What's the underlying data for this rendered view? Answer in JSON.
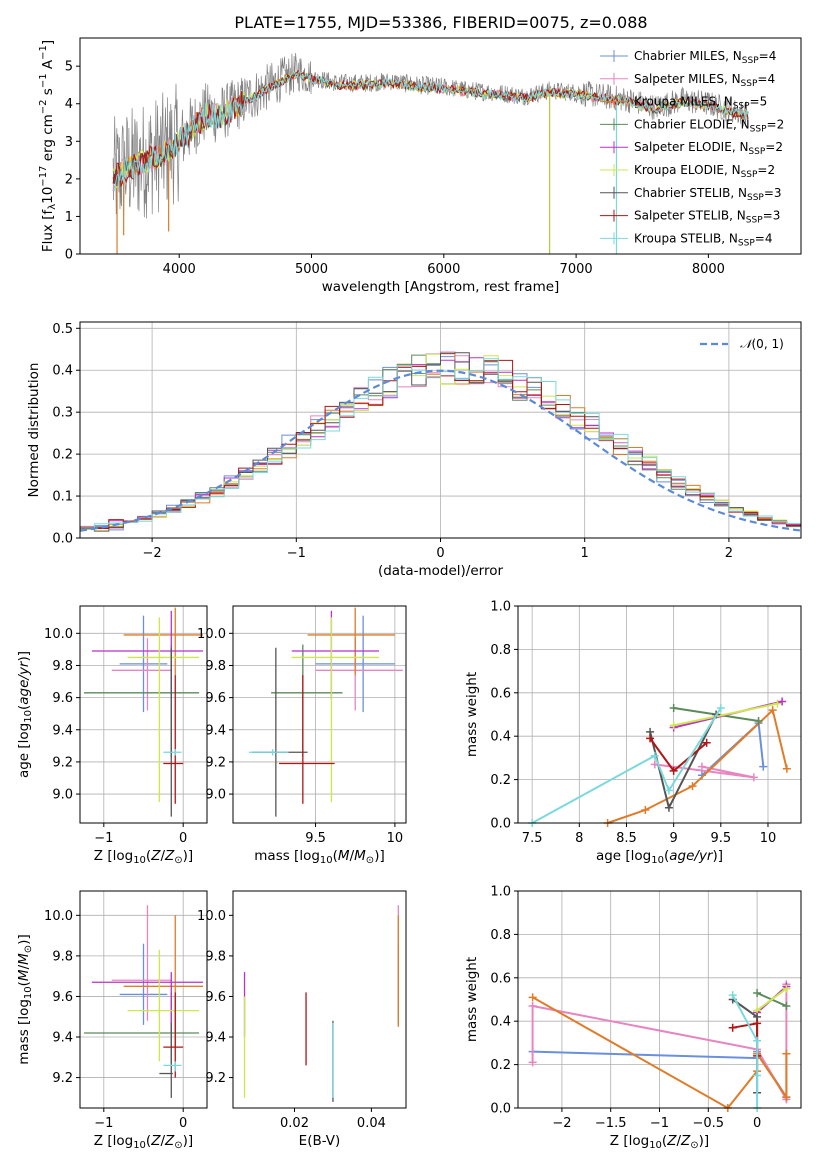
{
  "title": "PLATE=1755, MJD=53386, FIBERID=0075, z=0.088",
  "colors": {
    "chabrier_miles": "#6a8fdb",
    "salpeter_miles": "#e885c0",
    "kroupa_miles": "#e07b28",
    "chabrier_elodie": "#5b8a5b",
    "salpeter_elodie": "#b832c9",
    "kroupa_elodie": "#cde84d",
    "chabrier_stelib": "#555555",
    "salpeter_stelib": "#b01515",
    "kroupa_stelib": "#7ad9dd",
    "data": "#808080"
  },
  "models": [
    {
      "key": "chabrier_miles",
      "imf": "Chabrier",
      "lib": "MILES",
      "nssp": "4"
    },
    {
      "key": "salpeter_miles",
      "imf": "Salpeter",
      "lib": "MILES",
      "nssp": "4"
    },
    {
      "key": "kroupa_miles",
      "imf": "Kroupa",
      "lib": "MILES",
      "nssp": "5"
    },
    {
      "key": "chabrier_elodie",
      "imf": "Chabrier",
      "lib": "ELODIE",
      "nssp": "2"
    },
    {
      "key": "salpeter_elodie",
      "imf": "Salpeter",
      "lib": "ELODIE",
      "nssp": "2"
    },
    {
      "key": "kroupa_elodie",
      "imf": "Kroupa",
      "lib": "ELODIE",
      "nssp": "2"
    },
    {
      "key": "chabrier_stelib",
      "imf": "Chabrier",
      "lib": "STELIB",
      "nssp": "3"
    },
    {
      "key": "salpeter_stelib",
      "imf": "Salpeter",
      "lib": "STELIB",
      "nssp": "3"
    },
    {
      "key": "kroupa_stelib",
      "imf": "Kroupa",
      "lib": "STELIB",
      "nssp": "4"
    }
  ],
  "chart_data": [
    {
      "id": "spectrum",
      "type": "line",
      "xlabel": "wavelength [Angstrom, rest frame]",
      "ylabel": "Flux [f_λ 10^-17 erg cm^-2 s^-1 A^-1]",
      "xlim": [
        3250,
        8700
      ],
      "ylim": [
        0,
        5.75
      ],
      "xticks": [
        4000,
        5000,
        6000,
        7000,
        8000
      ],
      "yticks": [
        0,
        1,
        2,
        3,
        4,
        5
      ],
      "grid": false,
      "legend": "upper right",
      "continuum": {
        "x": [
          3500,
          3600,
          3700,
          3800,
          3900,
          4000,
          4100,
          4200,
          4300,
          4400,
          4500,
          4600,
          4700,
          4800,
          4900,
          5000,
          5200,
          5400,
          5600,
          5800,
          6000,
          6200,
          6400,
          6600,
          6800,
          7000,
          7200,
          7400,
          7600,
          7800,
          8000,
          8200,
          8450
        ],
        "y": [
          2.05,
          2.3,
          2.45,
          2.6,
          2.75,
          3.0,
          3.4,
          3.75,
          3.7,
          3.9,
          4.1,
          4.3,
          4.5,
          4.7,
          4.85,
          4.7,
          4.55,
          4.55,
          4.6,
          4.5,
          4.45,
          4.35,
          4.3,
          4.2,
          4.35,
          4.3,
          4.2,
          4.1,
          3.9,
          4.1,
          4.0,
          3.8,
          3.6
        ]
      },
      "data_range": [
        3500,
        8300
      ]
    },
    {
      "id": "residuals",
      "type": "line",
      "xlabel": "(data-model)/error",
      "ylabel": "Normed distribution",
      "xlim": [
        -2.5,
        2.5
      ],
      "ylim": [
        0,
        0.515
      ],
      "xticks": [
        -2,
        -1,
        0,
        1,
        2
      ],
      "yticks": [
        0.0,
        0.1,
        0.2,
        0.3,
        0.4,
        0.5
      ],
      "grid": true,
      "legend": "upper right",
      "reference_label": "N(0,1)",
      "hist_bins": 50
    },
    {
      "id": "z_age",
      "type": "scatter",
      "xlabel": "Z [log10(Z/Z⊙)]",
      "ylabel": "age [log10(age/yr)]",
      "xlim": [
        -1.3,
        0.3
      ],
      "ylim": [
        8.82,
        10.17
      ],
      "xticks": [
        -1,
        0
      ],
      "yticks": [
        9.0,
        9.2,
        9.4,
        9.6,
        9.8,
        10.0
      ],
      "grid": true,
      "points": [
        {
          "key": "chabrier_miles",
          "x": -0.5,
          "xerr": [
            0.3,
            0.3
          ],
          "y": 9.81,
          "yerr": [
            0.3,
            0.3
          ]
        },
        {
          "key": "salpeter_miles",
          "x": -0.45,
          "xerr": [
            0.45,
            0.3
          ],
          "y": 9.77,
          "yerr": [
            0.25,
            0.2
          ]
        },
        {
          "key": "kroupa_miles",
          "x": -0.1,
          "xerr": [
            0.65,
            0.35
          ],
          "y": 9.99,
          "yerr": [
            0.25,
            0.17
          ]
        },
        {
          "key": "chabrier_elodie",
          "x": -0.15,
          "xerr": [
            1.1,
            0.35
          ],
          "y": 9.63,
          "yerr": [
            0.4,
            0.3
          ]
        },
        {
          "key": "salpeter_elodie",
          "x": -0.15,
          "xerr": [
            1.0,
            0.4
          ],
          "y": 9.89,
          "yerr": [
            0.3,
            0.25
          ]
        },
        {
          "key": "kroupa_elodie",
          "x": -0.3,
          "xerr": [
            0.4,
            0.5
          ],
          "y": 9.85,
          "yerr": [
            0.9,
            0.25
          ]
        },
        {
          "key": "chabrier_stelib",
          "x": -0.15,
          "xerr": [
            0.02,
            0.02
          ],
          "y": 9.26,
          "yerr": [
            0.4,
            0.65
          ]
        },
        {
          "key": "salpeter_stelib",
          "x": -0.1,
          "xerr": [
            0.15,
            0.1
          ],
          "y": 9.19,
          "yerr": [
            0.25,
            0.55
          ]
        },
        {
          "key": "kroupa_stelib",
          "x": -0.1,
          "xerr": [
            0.15,
            0.08
          ],
          "y": 9.26,
          "yerr": [
            0.02,
            0.02
          ]
        }
      ]
    },
    {
      "id": "mass_age",
      "type": "scatter",
      "xlabel": "mass [log10(M/M⊙)]",
      "ylabel": "",
      "xlim": [
        8.98,
        10.07
      ],
      "ylim": [
        8.82,
        10.17
      ],
      "xticks": [
        9.5,
        10.0
      ],
      "yticks": [
        9.0,
        9.2,
        9.4,
        9.6,
        9.8,
        10.0
      ],
      "grid": true,
      "points": [
        {
          "key": "chabrier_miles",
          "x": 9.8,
          "xerr": [
            0.3,
            0.2
          ],
          "y": 9.81,
          "yerr": [
            0.3,
            0.3
          ]
        },
        {
          "key": "salpeter_miles",
          "x": 9.75,
          "xerr": [
            0.25,
            0.3
          ],
          "y": 9.77,
          "yerr": [
            0.25,
            0.2
          ]
        },
        {
          "key": "kroupa_miles",
          "x": 9.75,
          "xerr": [
            0.3,
            0.25
          ],
          "y": 9.99,
          "yerr": [
            0.25,
            0.17
          ]
        },
        {
          "key": "chabrier_elodie",
          "x": 9.42,
          "xerr": [
            0.2,
            0.25
          ],
          "y": 9.63,
          "yerr": [
            0.4,
            0.3
          ]
        },
        {
          "key": "salpeter_elodie",
          "x": 9.6,
          "xerr": [
            0.25,
            0.3
          ],
          "y": 9.89,
          "yerr": [
            0.3,
            0.25
          ]
        },
        {
          "key": "kroupa_elodie",
          "x": 9.6,
          "xerr": [
            0.25,
            0.3
          ],
          "y": 9.85,
          "yerr": [
            0.9,
            0.25
          ]
        },
        {
          "key": "chabrier_stelib",
          "x": 9.25,
          "xerr": [
            0.15,
            0.2
          ],
          "y": 9.26,
          "yerr": [
            0.4,
            0.65
          ]
        },
        {
          "key": "salpeter_stelib",
          "x": 9.42,
          "xerr": [
            0.15,
            0.2
          ],
          "y": 9.19,
          "yerr": [
            0.25,
            0.55
          ]
        },
        {
          "key": "kroupa_stelib",
          "x": 9.23,
          "xerr": [
            0.15,
            0.1
          ],
          "y": 9.26,
          "yerr": [
            0.02,
            0.02
          ]
        }
      ]
    },
    {
      "id": "age_weight",
      "type": "line",
      "xlabel": "age [log10(age/yr)]",
      "ylabel": "mass weight",
      "xlim": [
        7.35,
        10.35
      ],
      "ylim": [
        0,
        1
      ],
      "xticks": [
        7.5,
        8.0,
        8.5,
        9.0,
        9.5,
        10.0
      ],
      "yticks": [
        0.0,
        0.2,
        0.4,
        0.6,
        0.8,
        1.0
      ],
      "grid": true,
      "series": [
        {
          "key": "chabrier_miles",
          "x": [
            9.3,
            9.9,
            9.95
          ],
          "y": [
            0.22,
            0.46,
            0.26
          ]
        },
        {
          "key": "salpeter_miles",
          "x": [
            9.3,
            9.85,
            8.8
          ],
          "y": [
            0.26,
            0.21,
            0.27
          ]
        },
        {
          "key": "kroupa_miles",
          "x": [
            8.3,
            8.7,
            9.2,
            10.05,
            10.2
          ],
          "y": [
            0.0,
            0.06,
            0.17,
            0.52,
            0.25
          ]
        },
        {
          "key": "chabrier_elodie",
          "x": [
            9.0,
            9.9
          ],
          "y": [
            0.53,
            0.47
          ]
        },
        {
          "key": "salpeter_elodie",
          "x": [
            9.0,
            10.15
          ],
          "y": [
            0.44,
            0.56
          ]
        },
        {
          "key": "kroupa_elodie",
          "x": [
            9.0,
            10.1
          ],
          "y": [
            0.45,
            0.55
          ]
        },
        {
          "key": "chabrier_stelib",
          "x": [
            8.75,
            8.95,
            9.45
          ],
          "y": [
            0.42,
            0.07,
            0.5
          ]
        },
        {
          "key": "salpeter_stelib",
          "x": [
            8.75,
            9.0,
            9.35
          ],
          "y": [
            0.39,
            0.24,
            0.37
          ]
        },
        {
          "key": "kroupa_stelib",
          "x": [
            7.5,
            8.8,
            8.95,
            9.5
          ],
          "y": [
            0.0,
            0.31,
            0.15,
            0.53
          ]
        }
      ]
    },
    {
      "id": "z_mass",
      "type": "scatter",
      "xlabel": "Z [log10(Z/Z⊙)]",
      "ylabel": "mass [log10(M/M⊙)]",
      "xlim": [
        -1.3,
        0.3
      ],
      "ylim": [
        9.05,
        10.12
      ],
      "xticks": [
        -1,
        0
      ],
      "yticks": [
        9.2,
        9.4,
        9.6,
        9.8,
        10.0
      ],
      "grid": true,
      "points": [
        {
          "key": "chabrier_miles",
          "x": -0.5,
          "xerr": [
            0.3,
            0.3
          ],
          "y": 9.61,
          "yerr": [
            0.15,
            0.25
          ]
        },
        {
          "key": "salpeter_miles",
          "x": -0.45,
          "xerr": [
            0.45,
            0.3
          ],
          "y": 9.68,
          "yerr": [
            0.2,
            0.37
          ]
        },
        {
          "key": "kroupa_miles",
          "x": -0.1,
          "xerr": [
            0.65,
            0.35
          ],
          "y": 9.65,
          "yerr": [
            0.3,
            0.35
          ]
        },
        {
          "key": "chabrier_elodie",
          "x": -0.15,
          "xerr": [
            1.1,
            0.35
          ],
          "y": 9.42,
          "yerr": [
            0.15,
            0.2
          ]
        },
        {
          "key": "salpeter_elodie",
          "x": -0.15,
          "xerr": [
            1.0,
            0.4
          ],
          "y": 9.67,
          "yerr": [
            0.25,
            0.05
          ]
        },
        {
          "key": "kroupa_elodie",
          "x": -0.3,
          "xerr": [
            0.4,
            0.5
          ],
          "y": 9.53,
          "yerr": [
            0.25,
            0.3
          ]
        },
        {
          "key": "chabrier_stelib",
          "x": -0.15,
          "xerr": [
            0.15,
            0.02
          ],
          "y": 9.22,
          "yerr": [
            0.12,
            0.25
          ]
        },
        {
          "key": "salpeter_stelib",
          "x": -0.1,
          "xerr": [
            0.15,
            0.1
          ],
          "y": 9.35,
          "yerr": [
            0.15,
            0.27
          ]
        },
        {
          "key": "kroupa_stelib",
          "x": -0.1,
          "xerr": [
            0.15,
            0.08
          ],
          "y": 9.26,
          "yerr": [
            0.03,
            0.02
          ]
        }
      ]
    },
    {
      "id": "ebv_mass",
      "type": "scatter",
      "xlabel": "E(B-V)",
      "ylabel": "",
      "xlim": [
        0.004,
        0.049
      ],
      "ylim": [
        9.05,
        10.12
      ],
      "xticks": [
        0.02,
        0.04
      ],
      "yticks": [
        9.2,
        9.4,
        9.6,
        9.8,
        10.0
      ],
      "grid": false,
      "points": [
        {
          "key": "chabrier_miles",
          "x": 0.047,
          "y": 9.61,
          "yerr": [
            0.15,
            0.25
          ]
        },
        {
          "key": "salpeter_miles",
          "x": 0.047,
          "y": 9.68,
          "yerr": [
            0.2,
            0.37
          ]
        },
        {
          "key": "kroupa_miles",
          "x": 0.047,
          "y": 9.65,
          "yerr": [
            0.2,
            0.35
          ]
        },
        {
          "key": "salpeter_elodie",
          "x": 0.007,
          "y": 9.6,
          "yerr": [
            0.2,
            0.12
          ]
        },
        {
          "key": "kroupa_elodie",
          "x": 0.007,
          "y": 9.45,
          "yerr": [
            0.35,
            0.15
          ]
        },
        {
          "key": "salpeter_stelib",
          "x": 0.023,
          "y": 9.44,
          "yerr": [
            0.18,
            0.18
          ]
        },
        {
          "key": "chabrier_stelib",
          "x": 0.03,
          "y": 9.28,
          "yerr": [
            0.2,
            0.2
          ]
        },
        {
          "key": "kroupa_stelib",
          "x": 0.03,
          "y": 9.27,
          "yerr": [
            0.17,
            0.2
          ]
        }
      ]
    },
    {
      "id": "z_weight",
      "type": "line",
      "xlabel": "Z [log10(Z/Z⊙)]",
      "ylabel": "mass weight",
      "xlim": [
        -2.45,
        0.45
      ],
      "ylim": [
        0,
        1
      ],
      "xticks": [
        -2.0,
        -1.5,
        -1.0,
        -0.5,
        0.0
      ],
      "yticks": [
        0.0,
        0.2,
        0.4,
        0.6,
        0.8,
        1.0
      ],
      "grid": true,
      "series": [
        {
          "key": "chabrier_miles",
          "x": [
            -2.3,
            0.0,
            0.0,
            0.3
          ],
          "y": [
            0.26,
            0.23,
            0.26,
            0.05
          ]
        },
        {
          "key": "salpeter_miles",
          "x": [
            -2.3,
            -2.3,
            0.0,
            0.3,
            0.3
          ],
          "y": [
            0.21,
            0.47,
            0.27,
            0.04,
            0.57
          ]
        },
        {
          "key": "kroupa_miles",
          "x": [
            -2.3,
            -0.3,
            0.0,
            0.0,
            0.3,
            0.3
          ],
          "y": [
            0.51,
            0.0,
            0.17,
            0.25,
            0.05,
            0.25
          ]
        },
        {
          "key": "chabrier_elodie",
          "x": [
            0.0,
            0.3
          ],
          "y": [
            0.53,
            0.47
          ]
        },
        {
          "key": "salpeter_elodie",
          "x": [
            0.0,
            0.3
          ],
          "y": [
            0.44,
            0.56
          ]
        },
        {
          "key": "kroupa_elodie",
          "x": [
            0.0,
            0.3
          ],
          "y": [
            0.45,
            0.55
          ]
        },
        {
          "key": "chabrier_stelib",
          "x": [
            -0.25,
            0.0,
            0.0
          ],
          "y": [
            0.5,
            0.42,
            0.07
          ]
        },
        {
          "key": "salpeter_stelib",
          "x": [
            -0.25,
            0.0,
            0.0
          ],
          "y": [
            0.37,
            0.39,
            0.24
          ]
        },
        {
          "key": "kroupa_stelib",
          "x": [
            -0.25,
            0.0,
            0.0,
            0.0
          ],
          "y": [
            0.52,
            0.31,
            0.15,
            0.0
          ]
        }
      ]
    }
  ]
}
